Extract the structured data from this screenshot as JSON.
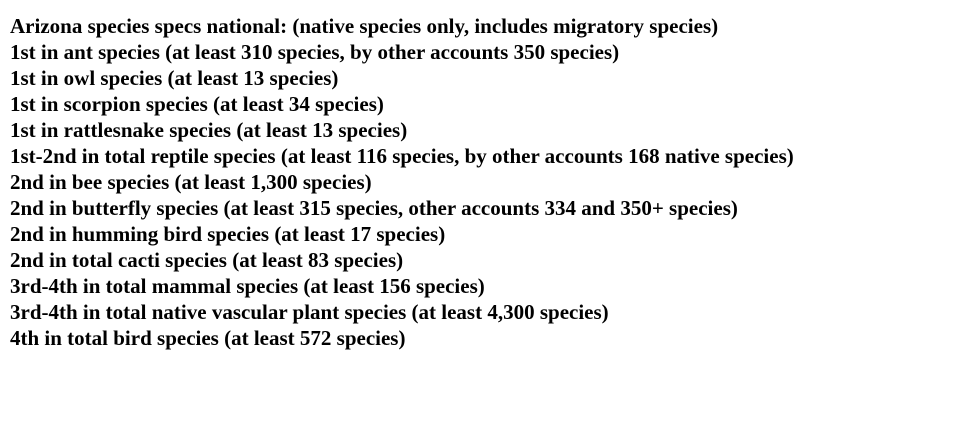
{
  "document": {
    "heading": "Arizona species specs national: (native species only, includes migratory species)",
    "lines": [
      "1st in ant species (at least 310 species, by other accounts 350 species)",
      "1st in owl species (at least 13 species)",
      "1st in scorpion species (at least 34 species)",
      "1st in rattlesnake species (at least 13 species)",
      "1st-2nd in total reptile species (at least 116 species, by other accounts 168 native species)",
      "2nd in bee species (at least 1,300 species)",
      "2nd in butterfly species (at least 315 species, other accounts 334 and 350+ species)",
      "2nd in humming bird species (at least 17 species)",
      "2nd in total cacti species (at least 83 species)",
      "3rd-4th in total mammal species (at least 156 species)",
      "3rd-4th in total native vascular plant species (at least 4,300 species)",
      "4th in total bird species (at least 572 species)"
    ]
  }
}
